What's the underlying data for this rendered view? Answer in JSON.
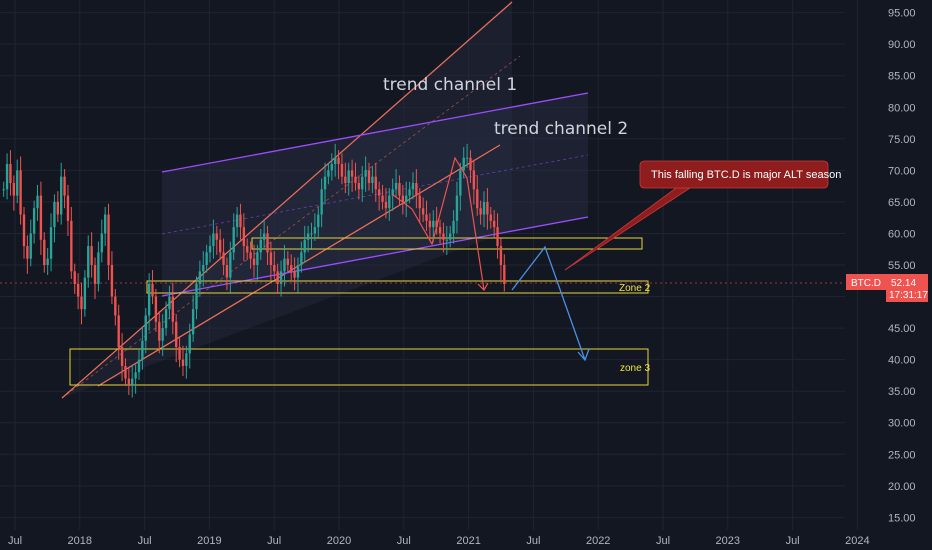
{
  "chart_data": {
    "type": "candlestick",
    "symbol": "BTC.D",
    "last_price": "52.14",
    "countdown": "17:31:17",
    "y_ticks": [
      "95.00",
      "90.00",
      "85.00",
      "80.00",
      "75.00",
      "70.00",
      "65.00",
      "60.00",
      "55.00",
      "50.00",
      "45.00",
      "40.00",
      "35.00",
      "30.00",
      "25.00",
      "20.00",
      "15.00"
    ],
    "x_ticks": [
      "Jul",
      "2018",
      "Jul",
      "2019",
      "Jul",
      "2020",
      "Jul",
      "2021",
      "Jul",
      "2022",
      "Jul",
      "2023",
      "Jul",
      "2024"
    ],
    "ylim": [
      13,
      97
    ],
    "grid": true,
    "close_series": [
      67,
      71,
      68,
      66,
      70,
      63,
      58,
      56,
      60,
      64,
      66,
      59,
      55,
      56,
      61,
      65,
      63,
      69,
      66,
      62,
      54,
      52,
      50,
      48,
      53,
      58,
      55,
      52,
      57,
      60,
      63,
      55,
      50,
      47,
      42,
      39,
      37,
      36,
      37,
      38,
      40,
      43,
      47,
      52,
      50,
      46,
      43,
      45,
      48,
      50,
      46,
      42,
      40,
      39,
      41,
      44,
      48,
      52,
      54,
      55,
      57,
      58,
      60,
      59,
      57,
      55,
      53,
      57,
      61,
      63,
      61,
      58,
      57,
      56,
      55,
      57,
      59,
      60,
      57,
      55,
      54,
      52,
      54,
      56,
      55,
      54,
      53,
      55,
      57,
      59,
      60,
      60,
      61,
      63,
      67,
      69,
      70,
      71,
      72,
      71,
      69,
      68,
      70,
      69,
      68,
      67,
      69,
      70,
      68,
      69,
      67,
      66,
      65,
      64,
      66,
      67,
      68,
      66,
      65,
      66,
      67,
      68,
      66,
      64,
      63,
      62,
      61,
      62,
      61,
      60,
      59,
      59,
      60,
      62,
      66,
      70,
      72,
      72,
      70,
      67,
      64,
      63,
      65,
      63,
      62,
      61,
      58,
      55,
      52
    ],
    "annotations": {
      "channel_1": "trend channel 1",
      "channel_2": "trend channel 2",
      "zone_2": "Zone 2",
      "zone_3": "zone 3",
      "callout": "This falling BTC.D is major ALT season"
    }
  },
  "colors": {
    "background": "#131722",
    "grid": "#1f2433",
    "up": "#26a69a",
    "down": "#ef5350",
    "channel1": "#f0705a",
    "channel2": "#9c4dff",
    "zone": "#e8d43a",
    "projection": "#4a90e2",
    "callout_bg": "#8f1d1d"
  }
}
